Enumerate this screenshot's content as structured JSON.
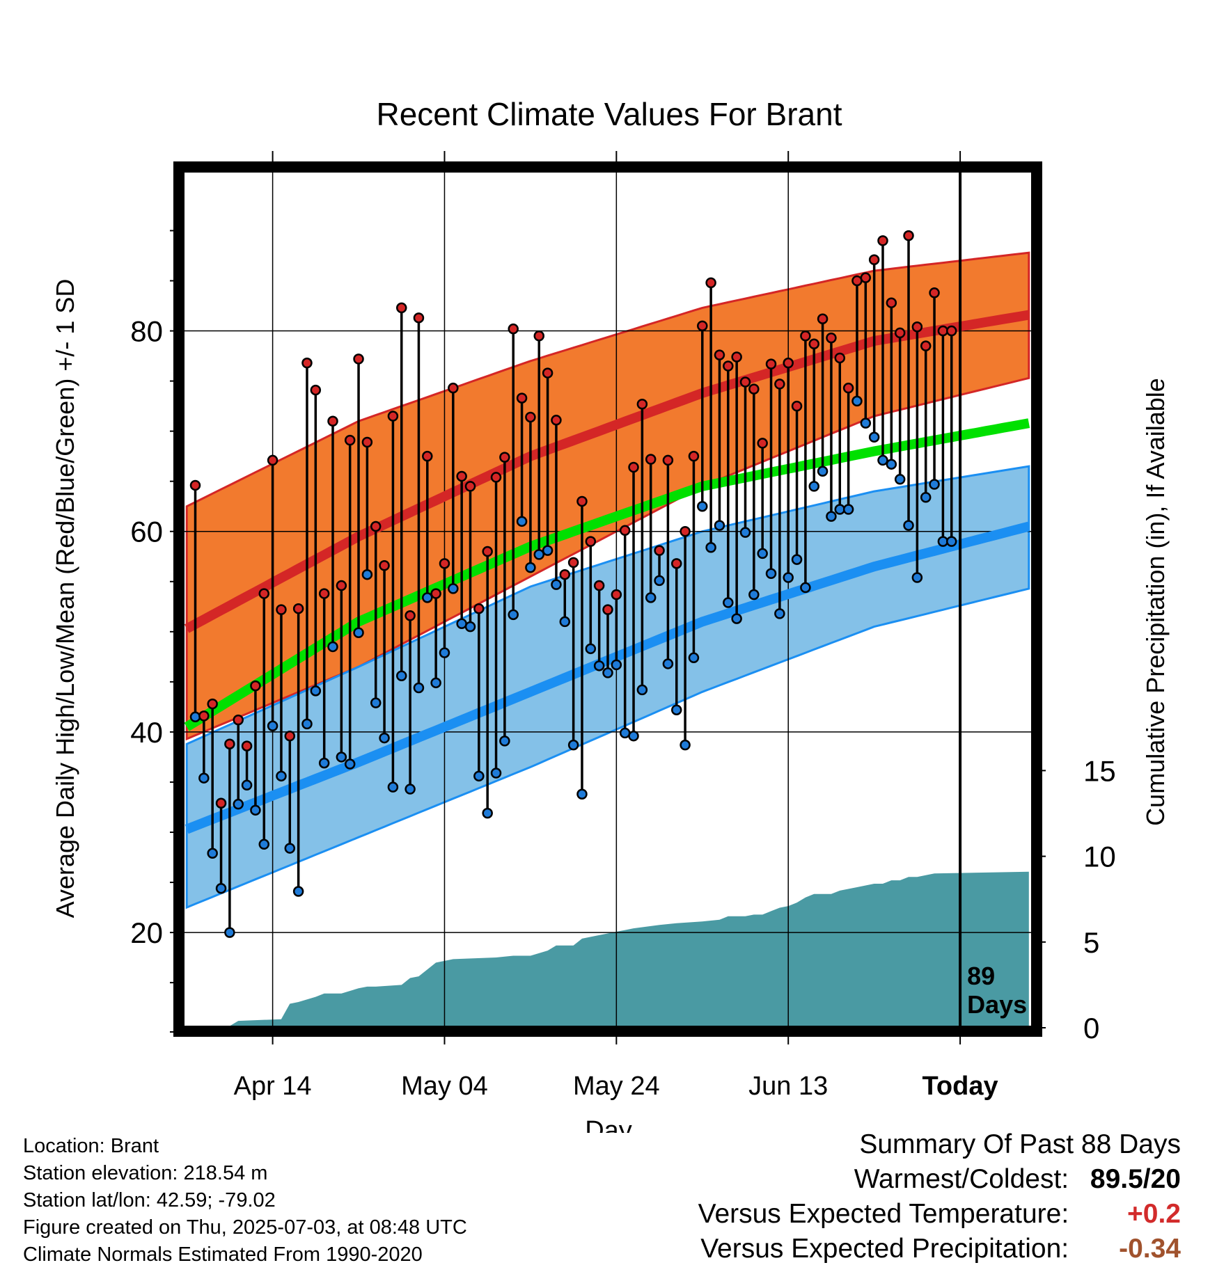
{
  "chart_data": {
    "type": "line",
    "title": "Recent Climate Values For Brant",
    "xlabel": "Day",
    "ylabel": "Average Daily High/Low/Mean (Red/Blue/Green) +/- 1 SD",
    "y2label": "Cumulative Precipitation (in), If Available",
    "x_tick_labels": [
      "Apr 14",
      "May 04",
      "May 24",
      "Jun 13",
      "Today"
    ],
    "x_tick_days": [
      10,
      30,
      50,
      70,
      90
    ],
    "xlim": [
      -0.5,
      98.5
    ],
    "ylim": [
      10.5,
      96
    ],
    "y_ticks": [
      20,
      40,
      60,
      80
    ],
    "y2lim": [
      0,
      50
    ],
    "y2_ticks": [
      0,
      5,
      10,
      15
    ],
    "today_label": "89 Days",
    "today_day": 90,
    "normal_high": {
      "day": [
        0,
        20,
        40,
        60,
        80,
        98
      ],
      "mean": [
        50.3,
        59.5,
        67.5,
        73.8,
        79.0,
        81.6
      ],
      "upper": [
        62.5,
        71.0,
        77.0,
        82.3,
        86.0,
        87.8
      ],
      "lower": [
        39.3,
        46.5,
        55.5,
        64.5,
        71.5,
        75.3
      ]
    },
    "normal_low": {
      "day": [
        0,
        20,
        40,
        60,
        80,
        98
      ],
      "mean": [
        30.3,
        37.0,
        44.0,
        51.0,
        56.5,
        60.5
      ],
      "upper": [
        38.8,
        46.5,
        54.5,
        60.0,
        64.0,
        66.5
      ],
      "lower": [
        22.5,
        29.5,
        36.5,
        44.0,
        50.5,
        54.3
      ]
    },
    "normal_mean": {
      "day": [
        0,
        20,
        40,
        60,
        80,
        98
      ],
      "values": [
        40.5,
        51.0,
        58.5,
        64.5,
        68.0,
        70.8
      ]
    },
    "daily_high": [
      64.6,
      41.6,
      42.8,
      32.9,
      38.8,
      41.2,
      38.6,
      44.6,
      53.8,
      67.1,
      52.2,
      39.6,
      52.3,
      76.8,
      74.1,
      53.8,
      71.0,
      54.6,
      69.1,
      77.2,
      68.9,
      60.5,
      56.6,
      71.5,
      82.3,
      51.6,
      81.3,
      67.5,
      53.8,
      56.8,
      74.3,
      65.5,
      64.5,
      52.3,
      58.0,
      65.4,
      67.4,
      80.2,
      73.3,
      71.4,
      79.5,
      75.8,
      71.1,
      55.7,
      56.9,
      63.0,
      59.0,
      54.6,
      52.2,
      53.7,
      60.1,
      66.4,
      72.7,
      67.2,
      58.1,
      67.1,
      56.8,
      60.0,
      67.5,
      80.5,
      84.8,
      77.6,
      76.5,
      77.4,
      74.9,
      74.2,
      68.8,
      76.7,
      74.7,
      76.8,
      72.5,
      79.5,
      78.7,
      81.2,
      79.3,
      77.3,
      74.3,
      85.0,
      85.3,
      87.1,
      89.0,
      82.8,
      79.8,
      89.5,
      80.4,
      78.5,
      83.8,
      80.0,
      80.0
    ],
    "daily_low": [
      41.5,
      35.4,
      27.9,
      24.4,
      20.0,
      32.8,
      34.7,
      32.2,
      28.8,
      40.6,
      35.6,
      28.4,
      24.1,
      40.8,
      44.1,
      36.9,
      48.5,
      37.5,
      36.8,
      49.9,
      55.7,
      42.9,
      39.4,
      34.5,
      45.6,
      34.3,
      44.4,
      53.4,
      44.9,
      47.9,
      54.3,
      50.8,
      50.5,
      35.6,
      31.9,
      35.9,
      39.1,
      51.7,
      61.0,
      56.4,
      57.7,
      58.1,
      54.7,
      51.0,
      38.7,
      33.8,
      48.3,
      46.6,
      45.9,
      46.7,
      39.9,
      39.6,
      44.2,
      53.4,
      55.1,
      46.8,
      42.2,
      38.7,
      47.4,
      62.5,
      58.4,
      60.6,
      52.9,
      51.3,
      59.9,
      53.7,
      57.8,
      55.8,
      51.8,
      55.4,
      57.2,
      54.4,
      64.5,
      66.0,
      61.5,
      62.2,
      62.2,
      73.0,
      70.8,
      69.4,
      67.1,
      66.7,
      65.2,
      60.6,
      55.4,
      63.4,
      64.7,
      59.0,
      59.0
    ],
    "precip_day": [
      0,
      5,
      6,
      11,
      12,
      13,
      15,
      16,
      17,
      18,
      20,
      21,
      22,
      25,
      26,
      27,
      28,
      29,
      31,
      36,
      38,
      40,
      42,
      43,
      45,
      46,
      47,
      48,
      50,
      51,
      52,
      55,
      57,
      60,
      62,
      63,
      65,
      66,
      67,
      68,
      69,
      70,
      71,
      72,
      73,
      75,
      76,
      78,
      80,
      81,
      82,
      83,
      84,
      85,
      86,
      87,
      98
    ],
    "precip_cumulative": [
      0.0,
      0.1,
      0.4,
      0.5,
      1.4,
      1.5,
      1.8,
      2.0,
      2.0,
      2.0,
      2.3,
      2.4,
      2.4,
      2.5,
      2.9,
      3.0,
      3.4,
      3.8,
      4.0,
      4.1,
      4.2,
      4.2,
      4.5,
      4.8,
      4.8,
      5.2,
      5.3,
      5.4,
      5.6,
      5.7,
      5.8,
      6.0,
      6.1,
      6.2,
      6.3,
      6.5,
      6.5,
      6.6,
      6.6,
      6.8,
      7.0,
      7.1,
      7.3,
      7.6,
      7.8,
      7.8,
      8.0,
      8.2,
      8.4,
      8.4,
      8.6,
      8.6,
      8.8,
      8.8,
      8.9,
      9.0,
      9.1
    ]
  },
  "info": {
    "location": "Location: Brant",
    "elevation": "Station elevation: 218.54 m",
    "latlon": "Station lat/lon: 42.59; -79.02",
    "created": "Figure created on Thu, 2025-07-03, at 08:48 UTC",
    "normals": "Climate Normals Estimated From 1990-2020"
  },
  "summary": {
    "title": "Summary Of Past 88 Days",
    "warmest_label": "Warmest/Coldest:",
    "warmest_value": "89.5/20",
    "temp_label": "Versus Expected Temperature:",
    "temp_value": "+0.2",
    "temp_color": "#d22b2b",
    "precip_label": "Versus Expected Precipitation:",
    "precip_value": "-0.34",
    "precip_color": "#a0522d"
  },
  "colors": {
    "high_band": "#f27a2e",
    "high_line": "#d42626",
    "low_band": "#84c1e8",
    "low_line": "#1b8ff2",
    "mean_line": "#00e000",
    "precip_fill": "#4a9aa3",
    "high_dot": "#d42626",
    "low_dot": "#1f7bd8"
  }
}
